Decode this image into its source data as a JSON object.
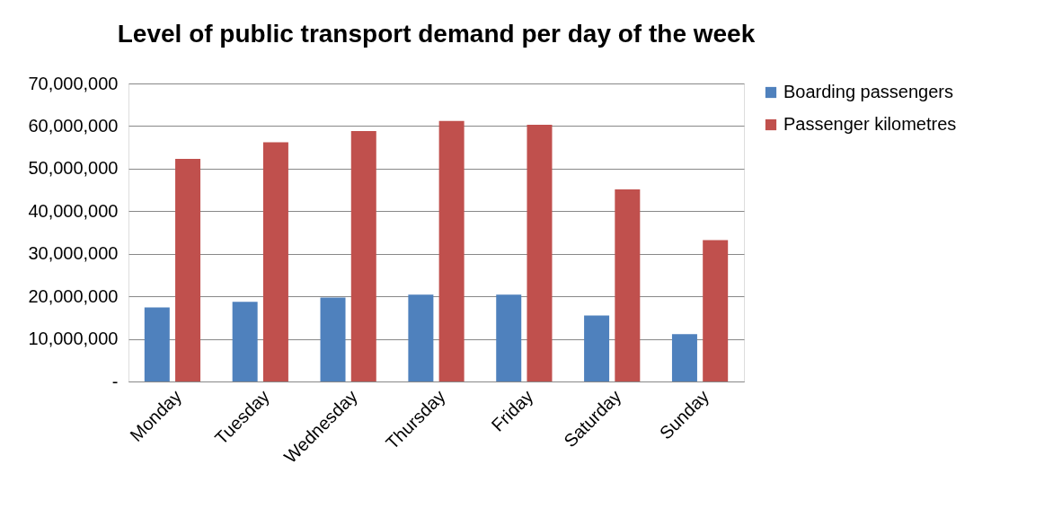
{
  "chart_data": {
    "type": "bar",
    "title": "Level of public transport demand per day of the week",
    "categories": [
      "Monday",
      "Tuesday",
      "Wednesday",
      "Thursday",
      "Friday",
      "Saturday",
      "Sunday"
    ],
    "series": [
      {
        "name": "Boarding passengers",
        "color": "#4f81bd",
        "values": [
          17400000,
          18700000,
          19700000,
          20400000,
          20400000,
          15500000,
          11100000
        ]
      },
      {
        "name": "Passenger kilometres",
        "color": "#c0504d",
        "values": [
          52300000,
          56200000,
          58800000,
          61200000,
          60300000,
          45100000,
          33200000
        ]
      }
    ],
    "ylim": [
      0,
      70000000
    ],
    "yticks": [
      {
        "value": 0,
        "label": "-"
      },
      {
        "value": 10000000,
        "label": "10,000,000"
      },
      {
        "value": 20000000,
        "label": "20,000,000"
      },
      {
        "value": 30000000,
        "label": "30,000,000"
      },
      {
        "value": 40000000,
        "label": "40,000,000"
      },
      {
        "value": 50000000,
        "label": "50,000,000"
      },
      {
        "value": 60000000,
        "label": "60,000,000"
      },
      {
        "value": 70000000,
        "label": "70,000,000"
      }
    ],
    "grid": "y",
    "legend": "right"
  }
}
